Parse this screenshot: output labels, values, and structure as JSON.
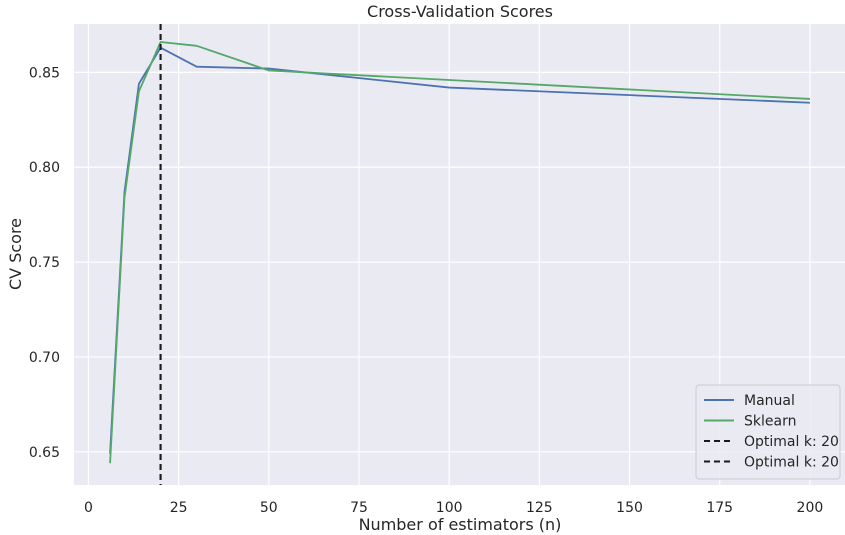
{
  "chart_data": {
    "type": "line",
    "title": "Cross-Validation Scores",
    "xlabel": "Number of estimators (n)",
    "ylabel": "CV Score",
    "xlim": [
      -4,
      210
    ],
    "ylim": [
      0.6325,
      0.8755
    ],
    "xticks": [
      0,
      25,
      50,
      75,
      100,
      125,
      150,
      175,
      200
    ],
    "yticks": [
      0.65,
      0.7,
      0.75,
      0.8,
      0.85
    ],
    "ytick_labels": [
      "0.65",
      "0.70",
      "0.75",
      "0.80",
      "0.85"
    ],
    "grid": true,
    "legend_position": "lower-right",
    "background": "#eaeaf2",
    "series": [
      {
        "name": "Manual",
        "color": "#4c72b0",
        "x": [
          6,
          10,
          14,
          20,
          30,
          50,
          100,
          200
        ],
        "values": [
          0.649,
          0.787,
          0.844,
          0.863,
          0.853,
          0.852,
          0.842,
          0.834
        ]
      },
      {
        "name": "Sklearn",
        "color": "#55a868",
        "x": [
          6,
          10,
          14,
          20,
          30,
          50,
          100,
          200
        ],
        "values": [
          0.644,
          0.784,
          0.84,
          0.866,
          0.864,
          0.851,
          0.846,
          0.836
        ]
      }
    ],
    "vlines": [
      {
        "label": "Optimal k: 20",
        "x": 20,
        "color": "#1a1a1a",
        "style": "dashed"
      },
      {
        "label": "Optimal k: 20",
        "x": 20,
        "color": "#1a1a1a",
        "style": "dashed"
      }
    ]
  }
}
